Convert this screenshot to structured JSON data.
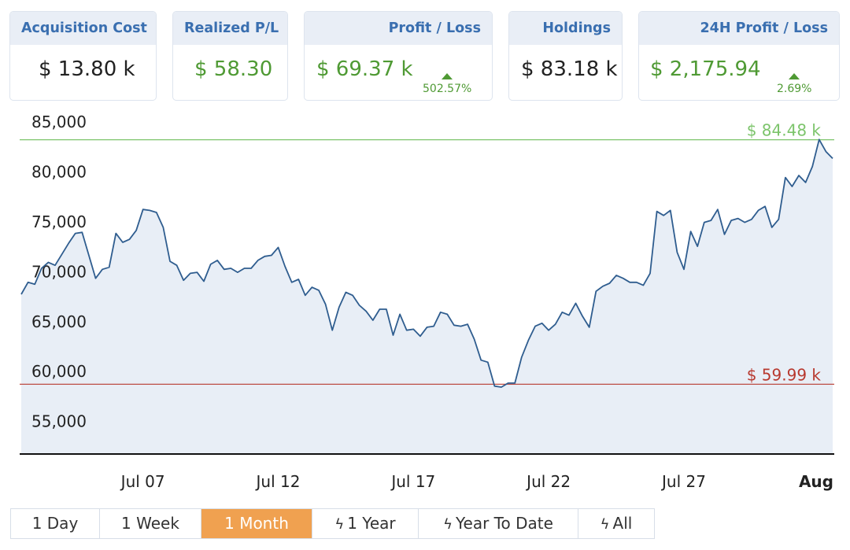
{
  "stats": {
    "acquisition": {
      "label": "Acquisition Cost",
      "value": "$ 13.80 k"
    },
    "realized": {
      "label": "Realized P/L",
      "value": "$ 58.30"
    },
    "profit": {
      "label": "Profit / Loss",
      "value": "$ 69.37 k",
      "change": "502.57%"
    },
    "holdings": {
      "label": "Holdings",
      "value": "$ 83.18 k"
    },
    "h24": {
      "label": "24H Profit / Loss",
      "value": "$ 2,175.94",
      "change": "2.69%"
    }
  },
  "colors": {
    "line": "#2f5d8f",
    "fill": "#e8eef6",
    "green": "#4f9a34",
    "high": "#7cc46b",
    "low": "#b8392f",
    "accent": "#f0a150",
    "header_text": "#3a6fb0"
  },
  "chart_data": {
    "type": "area",
    "ylim": [
      53000,
      85000
    ],
    "yticks": [
      "85,000",
      "80,000",
      "75,000",
      "70,000",
      "65,000",
      "60,000",
      "55,000"
    ],
    "ytick_values": [
      85000,
      80000,
      75000,
      70000,
      65000,
      60000,
      55000
    ],
    "xticks": [
      {
        "label": "Jul 07",
        "day": 7,
        "bold": false
      },
      {
        "label": "Jul 12",
        "day": 12,
        "bold": false
      },
      {
        "label": "Jul 17",
        "day": 17,
        "bold": false
      },
      {
        "label": "Jul 22",
        "day": 22,
        "bold": false
      },
      {
        "label": "Jul 27",
        "day": 27,
        "bold": false
      },
      {
        "label": "Aug",
        "day": 32,
        "bold": true
      }
    ],
    "high": {
      "value": 84480,
      "label": "$ 84.48 k"
    },
    "low": {
      "value": 59990,
      "label": "$ 59.99 k"
    },
    "x_start_day": 2.5,
    "x_end_day": 32.5,
    "series": [
      {
        "x": [
          2.5,
          2.75,
          3.0,
          3.25,
          3.5,
          3.75,
          4.0,
          4.25,
          4.5,
          4.75,
          5.0,
          5.25,
          5.5,
          5.75,
          6.0,
          6.25,
          6.5,
          6.75,
          7.0,
          7.25,
          7.5,
          7.75,
          8.0,
          8.25,
          8.5,
          8.75,
          9.0,
          9.25,
          9.5,
          9.75,
          10.0,
          10.25,
          10.5,
          10.75,
          11.0,
          11.25,
          11.5,
          11.75,
          12.0,
          12.25,
          12.5,
          12.75,
          13.0,
          13.25,
          13.5,
          13.75,
          14.0,
          14.25,
          14.5,
          14.75,
          15.0,
          15.25,
          15.5,
          15.75,
          16.0,
          16.25,
          16.5,
          16.75,
          17.0,
          17.25,
          17.5,
          17.75,
          18.0,
          18.25,
          18.5,
          18.75,
          19.0,
          19.25,
          19.5,
          19.75,
          20.0,
          20.25,
          20.5,
          20.75,
          21.0,
          21.25,
          21.5,
          21.75,
          22.0,
          22.25,
          22.5,
          22.75,
          23.0,
          23.25,
          23.5,
          23.75,
          24.0,
          24.25,
          24.5,
          24.75,
          25.0,
          25.25,
          25.5,
          25.75,
          26.0,
          26.25,
          26.5,
          26.75,
          27.0,
          27.25,
          27.5,
          27.75,
          28.0,
          28.25,
          28.5,
          28.75,
          29.0,
          29.25,
          29.5,
          29.75,
          30.0,
          30.25,
          30.5,
          30.75,
          31.0,
          31.25,
          31.5,
          31.75,
          32.0,
          32.25,
          32.5
        ],
        "y": [
          69000,
          70200,
          70000,
          71600,
          72200,
          71900,
          73000,
          74100,
          75100,
          75200,
          72900,
          70600,
          71500,
          71700,
          75100,
          74200,
          74500,
          75400,
          77500,
          77400,
          77200,
          75700,
          72300,
          71900,
          70400,
          71100,
          71200,
          70300,
          72000,
          72400,
          71500,
          71600,
          71200,
          71600,
          71600,
          72400,
          72800,
          72900,
          73700,
          71800,
          70200,
          70500,
          68900,
          69700,
          69400,
          68000,
          65400,
          67700,
          69200,
          68900,
          67900,
          67300,
          66400,
          67500,
          67500,
          64900,
          67000,
          65400,
          65500,
          64800,
          65700,
          65800,
          67200,
          67000,
          65900,
          65800,
          66000,
          64500,
          62400,
          62200,
          59800,
          59700,
          60100,
          60100,
          62700,
          64400,
          65800,
          66100,
          65400,
          66000,
          67200,
          66900,
          68100,
          66800,
          65700,
          69300,
          69800,
          70100,
          70900,
          70600,
          70200,
          70200,
          69900,
          71100,
          77300,
          76900,
          77400,
          73200,
          71500,
          75300,
          73800,
          76200,
          76400,
          77500,
          75000,
          76400,
          76600,
          76200,
          76500,
          77400,
          77800,
          75700,
          76500,
          80700,
          79800,
          80900,
          80200,
          81800,
          84500,
          83300,
          82600
        ]
      }
    ]
  },
  "range_tabs": [
    {
      "label": "1 Day",
      "bolt": false,
      "active": false
    },
    {
      "label": "1 Week",
      "bolt": false,
      "active": false
    },
    {
      "label": "1 Month",
      "bolt": false,
      "active": true
    },
    {
      "label": "1 Year",
      "bolt": true,
      "active": false
    },
    {
      "label": "Year To Date",
      "bolt": true,
      "active": false
    },
    {
      "label": "All",
      "bolt": true,
      "active": false
    }
  ]
}
